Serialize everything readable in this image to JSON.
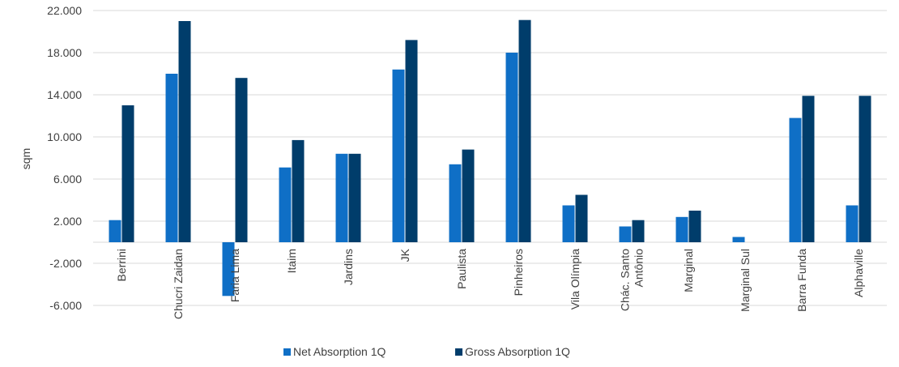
{
  "chart_data": {
    "type": "bar",
    "ylabel": "sqm",
    "ylim": [
      -6000,
      22000
    ],
    "yticks": [
      -6000,
      -2000,
      2000,
      6000,
      10000,
      14000,
      18000,
      22000
    ],
    "ytick_labels": [
      "-6.000",
      "-2.000",
      "2.000",
      "6.000",
      "10.000",
      "14.000",
      "18.000",
      "22.000"
    ],
    "grid": true,
    "legend_position": "bottom",
    "categories": [
      [
        "Berrini"
      ],
      [
        "Chucri Zaidan"
      ],
      [
        "Faria Lima"
      ],
      [
        "Itaim"
      ],
      [
        "Jardins"
      ],
      [
        "JK"
      ],
      [
        "Paulista"
      ],
      [
        "Pinheiros"
      ],
      [
        "Vila Olímpia"
      ],
      [
        "Chác. Santo",
        "Antônio"
      ],
      [
        "Marginal"
      ],
      [
        "Marginal Sul"
      ],
      [
        "Barra Funda"
      ],
      [
        "Alphaville"
      ]
    ],
    "series": [
      {
        "name": "Net Absorption 1Q",
        "color": "#0f6fc6",
        "values": [
          2100,
          16000,
          -5100,
          7100,
          8400,
          16400,
          7400,
          18000,
          3500,
          1500,
          2400,
          500,
          11800,
          3500
        ]
      },
      {
        "name": "Gross Absorption 1Q",
        "color": "#003d6b",
        "values": [
          13000,
          21000,
          15600,
          9700,
          8400,
          19200,
          8800,
          21100,
          4500,
          2100,
          3000,
          0,
          13900,
          13900
        ]
      }
    ]
  }
}
